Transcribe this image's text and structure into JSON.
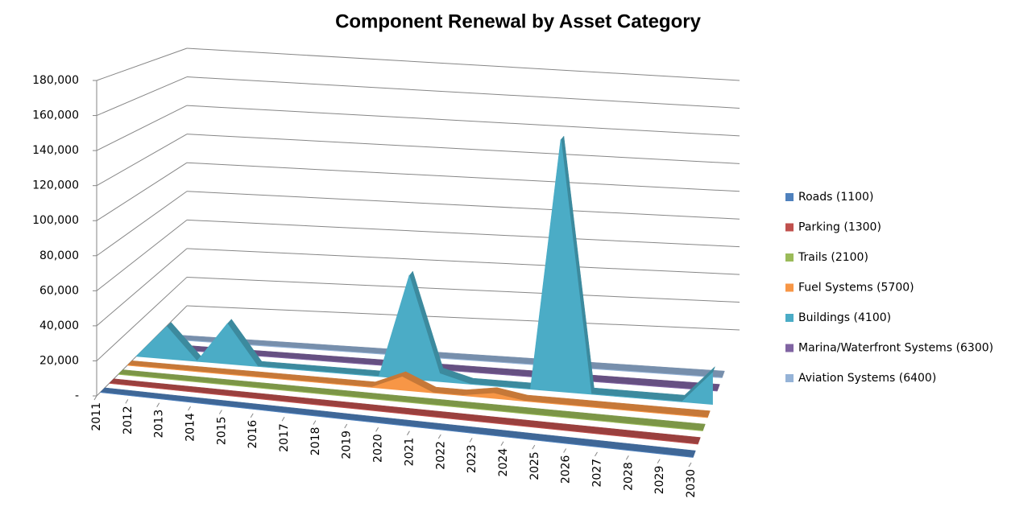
{
  "chart_data": {
    "type": "area3d",
    "title": "Component Renewal by Asset Category",
    "categories": [
      "2011",
      "2012",
      "2013",
      "2014",
      "2015",
      "2016",
      "2017",
      "2018",
      "2019",
      "2020",
      "2021",
      "2022",
      "2023",
      "2024",
      "2025",
      "2026",
      "2027",
      "2028",
      "2029",
      "2030"
    ],
    "series": [
      {
        "name": "Roads (1100)",
        "color": "#4f81bd",
        "values": [
          0,
          0,
          0,
          0,
          0,
          0,
          0,
          0,
          0,
          0,
          0,
          0,
          0,
          0,
          0,
          0,
          0,
          0,
          0,
          0
        ]
      },
      {
        "name": "Parking (1300)",
        "color": "#c0504d",
        "values": [
          0,
          0,
          0,
          0,
          0,
          0,
          0,
          0,
          0,
          0,
          0,
          0,
          0,
          0,
          0,
          0,
          0,
          0,
          0,
          0
        ]
      },
      {
        "name": "Trails (2100)",
        "color": "#9bbb59",
        "values": [
          0,
          0,
          0,
          0,
          0,
          0,
          0,
          0,
          0,
          0,
          0,
          0,
          0,
          0,
          0,
          0,
          0,
          0,
          0,
          0
        ]
      },
      {
        "name": "Fuel Systems (5700)",
        "color": "#f79646",
        "values": [
          0,
          0,
          0,
          0,
          0,
          0,
          0,
          0,
          0,
          8000,
          0,
          0,
          3000,
          0,
          0,
          0,
          0,
          0,
          0,
          0
        ]
      },
      {
        "name": "Buildings (4100)",
        "color": "#4bacc6",
        "values": [
          0,
          20000,
          0,
          25000,
          0,
          0,
          0,
          0,
          0,
          65000,
          5000,
          0,
          0,
          0,
          160000,
          0,
          0,
          0,
          0,
          20000
        ]
      },
      {
        "name": "Marina/Waterfront Systems (6300)",
        "color": "#8064a2",
        "values": [
          0,
          0,
          0,
          0,
          0,
          0,
          0,
          0,
          0,
          0,
          0,
          0,
          0,
          0,
          0,
          0,
          0,
          0,
          0,
          0
        ]
      },
      {
        "name": "Aviation Systems (6400)",
        "color": "#95b3d7",
        "values": [
          0,
          0,
          0,
          0,
          0,
          0,
          0,
          0,
          0,
          0,
          0,
          0,
          0,
          0,
          0,
          0,
          0,
          0,
          0,
          0
        ]
      }
    ],
    "ylim": [
      0,
      180000
    ],
    "yticks": [
      {
        "value": 0,
        "label": "-"
      },
      {
        "value": 20000,
        "label": "20,000"
      },
      {
        "value": 40000,
        "label": "40,000"
      },
      {
        "value": 60000,
        "label": "60,000"
      },
      {
        "value": 80000,
        "label": "80,000"
      },
      {
        "value": 100000,
        "label": "100,000"
      },
      {
        "value": 120000,
        "label": "120,000"
      },
      {
        "value": 140000,
        "label": "140,000"
      },
      {
        "value": 160000,
        "label": "160,000"
      },
      {
        "value": 180000,
        "label": "180,000"
      }
    ],
    "grid": true,
    "legend": "right"
  }
}
